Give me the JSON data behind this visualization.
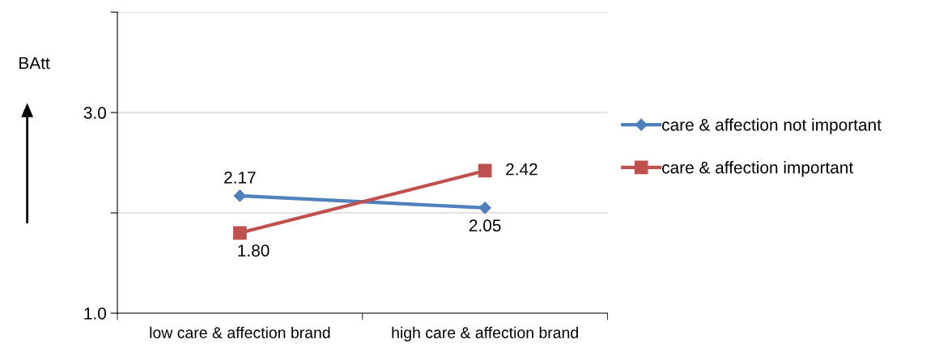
{
  "chart_data": {
    "type": "line",
    "ylabel": "BAtt",
    "categories": [
      "low care & affection brand",
      "high care & affection brand"
    ],
    "series": [
      {
        "name": "care & affection not important",
        "color": "#4f81bd",
        "marker": "diamond",
        "values": [
          2.17,
          2.05
        ],
        "value_labels": [
          "2.17",
          "2.05"
        ]
      },
      {
        "name": "care & affection important",
        "color": "#c0504d",
        "marker": "square",
        "values": [
          1.8,
          2.42
        ],
        "value_labels": [
          "1.80",
          "2.42"
        ]
      }
    ],
    "ylim": [
      1.0,
      4.0
    ],
    "yticks": [
      {
        "value": 1.0,
        "label": "1.0"
      },
      {
        "value": 2.0,
        "label": null
      },
      {
        "value": 3.0,
        "label": "3.0"
      },
      {
        "value": 4.0,
        "label": null
      }
    ],
    "grid": "y",
    "legend": "right"
  }
}
